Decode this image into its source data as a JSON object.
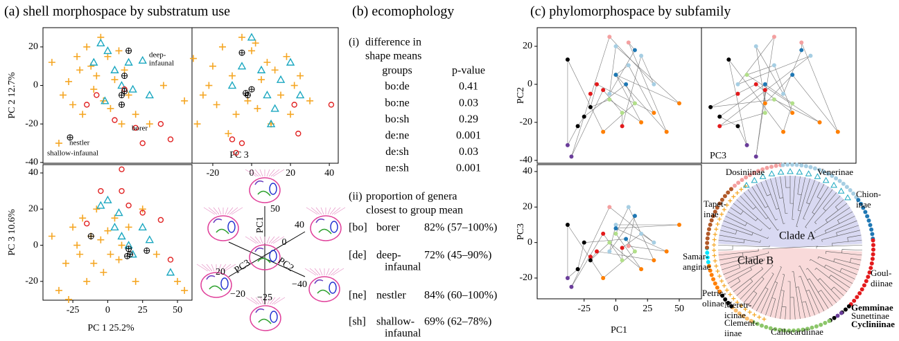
{
  "panel_a": {
    "title": "(a) shell morphospace by substratum use",
    "plots": [
      {
        "type": "scatter",
        "ylabel": "PC 2 12.7%",
        "xlim": [
          -46.4,
          60.4
        ],
        "ylim": [
          -40.4,
          30
        ],
        "yticks": [
          20,
          0,
          -20,
          -40
        ],
        "annotations": [
          "deep-",
          "infaunal",
          "borer",
          "nestler",
          "shallow-infaunal"
        ],
        "series": [
          {
            "marker": "plus",
            "color": "#f5a623",
            "x": [
              -40,
              -32,
              -28,
              -25,
              -22,
              -20,
              -18,
              -15,
              -12,
              -10,
              -8,
              -5,
              -3,
              0,
              2,
              5,
              8,
              10,
              12,
              15,
              20,
              30,
              40,
              -35,
              55
            ],
            "y": [
              12,
              -5,
              2,
              -10,
              15,
              8,
              -15,
              20,
              10,
              -2,
              5,
              25,
              -8,
              15,
              -12,
              3,
              18,
              -20,
              8,
              -5,
              -15,
              -20,
              0,
              -30,
              -8
            ]
          },
          {
            "marker": "triangle",
            "color": "#1aa7c0",
            "x": [
              -10,
              -5,
              0,
              5,
              10,
              15,
              18,
              25,
              30,
              -2
            ],
            "y": [
              12,
              22,
              18,
              8,
              0,
              12,
              -2,
              13,
              -5,
              -8
            ]
          },
          {
            "marker": "circle",
            "color": "#e02020",
            "x": [
              -15,
              -8,
              5,
              25,
              38,
              45,
              12,
              20
            ],
            "y": [
              -10,
              -5,
              -18,
              -30,
              -20,
              -28,
              -2,
              -22
            ]
          },
          {
            "marker": "crossed-circle",
            "color": "#000000",
            "x": [
              10,
              12,
              15,
              12,
              10,
              -27
            ],
            "y": [
              -5,
              5,
              18,
              -3,
              -10,
              -27
            ]
          }
        ]
      },
      {
        "type": "scatter",
        "xlabel": "PC 3",
        "xlim": [
          -30.7,
          44.6
        ],
        "ylim": [
          -40.4,
          30
        ],
        "xticks": [
          -20,
          0,
          20,
          40
        ],
        "series": [
          {
            "marker": "plus",
            "color": "#f5a623",
            "x": [
              -30,
              -25,
              -20,
              -18,
              -15,
              -10,
              -8,
              -5,
              -2,
              0,
              3,
              5,
              8,
              10,
              12,
              15,
              18,
              20,
              22,
              25,
              -28,
              -12,
              2,
              30,
              -22
            ],
            "y": [
              14,
              -5,
              10,
              -10,
              20,
              5,
              -15,
              25,
              -8,
              18,
              -12,
              3,
              12,
              -20,
              8,
              -5,
              15,
              -15,
              0,
              5,
              -20,
              -25,
              22,
              -8,
              0
            ]
          },
          {
            "marker": "triangle",
            "color": "#1aa7c0",
            "x": [
              -5,
              0,
              5,
              8,
              12,
              15,
              20,
              25,
              -10,
              10
            ],
            "y": [
              10,
              25,
              8,
              -5,
              -12,
              3,
              12,
              -5,
              0,
              -20
            ]
          },
          {
            "marker": "circle",
            "color": "#e02020",
            "x": [
              22,
              24,
              41,
              -10,
              -8,
              -5
            ],
            "y": [
              -10,
              -25,
              -10,
              -28,
              -35,
              -30
            ]
          },
          {
            "marker": "crossed-circle",
            "color": "#000000",
            "x": [
              -5,
              -2,
              0,
              -3
            ],
            "y": [
              17,
              -5,
              -2,
              -4
            ]
          }
        ]
      },
      {
        "type": "scatter",
        "xlabel": "PC 1 25.2%",
        "ylabel": "PC 3 10.6%",
        "xlim": [
          -46.4,
          60.4
        ],
        "ylim": [
          -30.4,
          44.6
        ],
        "xticks": [
          -25,
          0,
          25,
          50
        ],
        "yticks": [
          40,
          20,
          0,
          -20
        ],
        "series": [
          {
            "marker": "plus",
            "color": "#f5a623",
            "x": [
              -40,
              -35,
              -30,
              -25,
              -22,
              -20,
              -18,
              -15,
              -12,
              -10,
              -8,
              -5,
              -3,
              0,
              2,
              5,
              8,
              10,
              15,
              20,
              25,
              35,
              50,
              55,
              -28
            ],
            "y": [
              5,
              -25,
              -10,
              10,
              0,
              -5,
              15,
              -20,
              5,
              -10,
              20,
              3,
              -15,
              8,
              -5,
              15,
              -8,
              0,
              10,
              -20,
              20,
              -5,
              -20,
              -25,
              -30
            ]
          },
          {
            "marker": "triangle",
            "color": "#1aa7c0",
            "x": [
              -5,
              0,
              5,
              8,
              10,
              15,
              18,
              25,
              30,
              45
            ],
            "y": [
              22,
              25,
              10,
              18,
              5,
              0,
              -5,
              10,
              3,
              -15
            ]
          },
          {
            "marker": "circle",
            "color": "#e02020",
            "x": [
              -15,
              -5,
              10,
              15,
              25,
              38,
              45,
              10
            ],
            "y": [
              12,
              30,
              30,
              22,
              18,
              14,
              -8,
              42
            ]
          },
          {
            "marker": "crossed-circle",
            "color": "#000000",
            "x": [
              -12,
              15,
              16,
              28,
              14
            ],
            "y": [
              5,
              -2,
              -5,
              -3,
              -6
            ]
          }
        ]
      }
    ],
    "diagram_labels": [
      "PC1",
      "50",
      "0",
      "PC3",
      "−20",
      "20",
      "PC2",
      "40",
      "−40",
      "−25"
    ]
  },
  "panel_b": {
    "title": "(b) ecomophology",
    "part_i": {
      "label": "(i)",
      "heading": [
        "difference in",
        "shape means"
      ],
      "columns": [
        "groups",
        "p-value"
      ],
      "rows": [
        [
          "bo:de",
          "0.41"
        ],
        [
          "bo:ne",
          "0.03"
        ],
        [
          "bo:sh",
          "0.29"
        ],
        [
          "de:ne",
          "0.001"
        ],
        [
          "de:sh",
          "0.03"
        ],
        [
          "ne:sh",
          "0.001"
        ]
      ]
    },
    "part_ii": {
      "label": "(ii)",
      "heading": [
        "proportion of genera",
        "closest to group mean"
      ],
      "rows": [
        {
          "code": "[bo]",
          "group": [
            "borer"
          ],
          "value": "82% (57–100%)"
        },
        {
          "code": "[de]",
          "group": [
            "deep-",
            "infaunal"
          ],
          "value": "72% (45–90%)"
        },
        {
          "code": "[ne]",
          "group": [
            "nestler"
          ],
          "value": "84% (60–100%)"
        },
        {
          "code": "[sh]",
          "group": [
            "shallow-",
            "infaunal"
          ],
          "value": "69% (62–78%)"
        }
      ]
    }
  },
  "panel_c": {
    "title": "(c) phylomorphospace by subfamily",
    "plots": [
      {
        "type": "scatter",
        "ylabel": "PC2",
        "xlim": [
          -62,
          67.5
        ],
        "ylim": [
          -41.5,
          29.8
        ],
        "yticks": [
          20,
          0,
          -20,
          -40
        ],
        "series": [
          {
            "marker": "dot",
            "color": "#a6cee3",
            "x": [
              0,
              10,
              20,
              -5,
              30
            ],
            "y": [
              20,
              10,
              15,
              -5,
              0
            ]
          },
          {
            "marker": "dot",
            "color": "#b2df8a",
            "x": [
              -5,
              5,
              15,
              0
            ],
            "y": [
              -8,
              -15,
              -10,
              5
            ]
          },
          {
            "marker": "dot",
            "color": "#ff7f00",
            "x": [
              20,
              30,
              40,
              50,
              -10
            ],
            "y": [
              -20,
              -15,
              -25,
              -10,
              -25
            ]
          },
          {
            "marker": "dot",
            "color": "#e31a1c",
            "x": [
              -20,
              -15,
              -10,
              5
            ],
            "y": [
              -5,
              0,
              -3,
              -22
            ]
          },
          {
            "marker": "dot",
            "color": "#000000",
            "x": [
              -38,
              -25,
              -30,
              -20
            ],
            "y": [
              13,
              -17,
              -22,
              -12
            ]
          },
          {
            "marker": "dot",
            "color": "#1f78b4",
            "x": [
              0,
              8,
              15
            ],
            "y": [
              5,
              0,
              18
            ]
          },
          {
            "marker": "dot",
            "color": "#f4a0a0",
            "x": [
              -5,
              10
            ],
            "y": [
              25,
              22
            ]
          },
          {
            "marker": "dot",
            "color": "#6a3d9a",
            "x": [
              -38,
              -35
            ],
            "y": [
              -32,
              -38
            ]
          }
        ]
      },
      {
        "type": "scatter",
        "xlabel": "PC3",
        "xlim": [
          -40,
          45
        ],
        "ylim": [
          -41.5,
          29.8
        ],
        "series": [
          {
            "marker": "dot",
            "color": "#a6cee3",
            "x": [
              -10,
              0,
              20,
              5,
              -20
            ],
            "y": [
              20,
              10,
              15,
              -5,
              0
            ]
          },
          {
            "marker": "dot",
            "color": "#b2df8a",
            "x": [
              0,
              -5,
              10,
              -15
            ],
            "y": [
              -8,
              -15,
              -10,
              5
            ]
          },
          {
            "marker": "dot",
            "color": "#ff7f00",
            "x": [
              25,
              10,
              35,
              -5,
              5
            ],
            "y": [
              -20,
              -15,
              -25,
              -10,
              -25
            ]
          },
          {
            "marker": "dot",
            "color": "#e31a1c",
            "x": [
              -20,
              -10,
              -5,
              -30
            ],
            "y": [
              -5,
              0,
              -3,
              -22
            ]
          },
          {
            "marker": "dot",
            "color": "#000000",
            "x": [
              -25,
              -30,
              -20,
              -35
            ],
            "y": [
              13,
              -17,
              -22,
              -12
            ]
          },
          {
            "marker": "dot",
            "color": "#1f78b4",
            "x": [
              10,
              -5,
              15
            ],
            "y": [
              5,
              0,
              18
            ]
          },
          {
            "marker": "dot",
            "color": "#f4a0a0",
            "x": [
              0,
              15
            ],
            "y": [
              25,
              22
            ]
          },
          {
            "marker": "dot",
            "color": "#6a3d9a",
            "x": [
              -15,
              -10
            ],
            "y": [
              -32,
              -38
            ]
          }
        ]
      },
      {
        "type": "scatter",
        "xlabel": "PC1",
        "ylabel": "PC3",
        "xlim": [
          -62,
          67.5
        ],
        "ylim": [
          -31.7,
          43.9
        ],
        "xticks": [
          -25,
          0,
          25,
          50
        ],
        "yticks": [
          40,
          20,
          0,
          -20
        ],
        "series": [
          {
            "marker": "dot",
            "color": "#a6cee3",
            "x": [
              0,
              10,
              20,
              -5,
              30
            ],
            "y": [
              10,
              20,
              5,
              -5,
              0
            ]
          },
          {
            "marker": "dot",
            "color": "#b2df8a",
            "x": [
              -5,
              5,
              15,
              0
            ],
            "y": [
              0,
              -10,
              -5,
              5
            ]
          },
          {
            "marker": "dot",
            "color": "#ff7f00",
            "x": [
              20,
              30,
              40,
              50,
              -10
            ],
            "y": [
              -15,
              -10,
              -5,
              10,
              -20
            ]
          },
          {
            "marker": "dot",
            "color": "#e31a1c",
            "x": [
              -20,
              -15,
              -10,
              5
            ],
            "y": [
              -8,
              -5,
              5,
              -3
            ]
          },
          {
            "marker": "dot",
            "color": "#000000",
            "x": [
              -38,
              -25,
              -30,
              -20
            ],
            "y": [
              10,
              0,
              -15,
              -10
            ]
          },
          {
            "marker": "dot",
            "color": "#1f78b4",
            "x": [
              0,
              8,
              15
            ],
            "y": [
              8,
              2,
              15
            ]
          },
          {
            "marker": "dot",
            "color": "#f4a0a0",
            "x": [
              -5,
              10
            ],
            "y": [
              20,
              -2
            ]
          },
          {
            "marker": "dot",
            "color": "#6a3d9a",
            "x": [
              -38,
              -35
            ],
            "y": [
              -20,
              -25
            ]
          }
        ]
      }
    ],
    "phylogeny": {
      "subfamilies": [
        {
          "lines": [
            "Dosiniinae"
          ],
          "color": "#f4a0a0"
        },
        {
          "lines": [
            "Venerinae"
          ],
          "color": "#a6cee3"
        },
        {
          "lines": [
            "Chion-",
            "inae"
          ],
          "color": "#1f78b4"
        },
        {
          "lines": [
            "Goul-",
            "diinae"
          ],
          "color": "#e31a1c"
        },
        {
          "lines": [
            "Gemminae"
          ],
          "color": "#000000"
        },
        {
          "lines": [
            "Sunettinae"
          ],
          "color": "#6a3d9a"
        },
        {
          "lines": [
            "Cycliniinae"
          ],
          "color": "#000000"
        },
        {
          "lines": [
            "Callocardiinae"
          ],
          "color": "#8cc66a"
        },
        {
          "lines": [
            "Clement-",
            "iinae"
          ],
          "color": "#fdbf6f"
        },
        {
          "lines": [
            "Meretr-",
            "icinae"
          ],
          "color": "#000000"
        },
        {
          "lines": [
            "Petric-",
            "olinae"
          ],
          "color": "#ff7f00"
        },
        {
          "lines": [
            "Samar-",
            "anginae"
          ],
          "color": "#00e5ff"
        },
        {
          "lines": [
            "Tapet-",
            "inae"
          ],
          "color": "#b15928"
        }
      ],
      "clades": [
        "Clade A",
        "Clade B"
      ]
    }
  }
}
